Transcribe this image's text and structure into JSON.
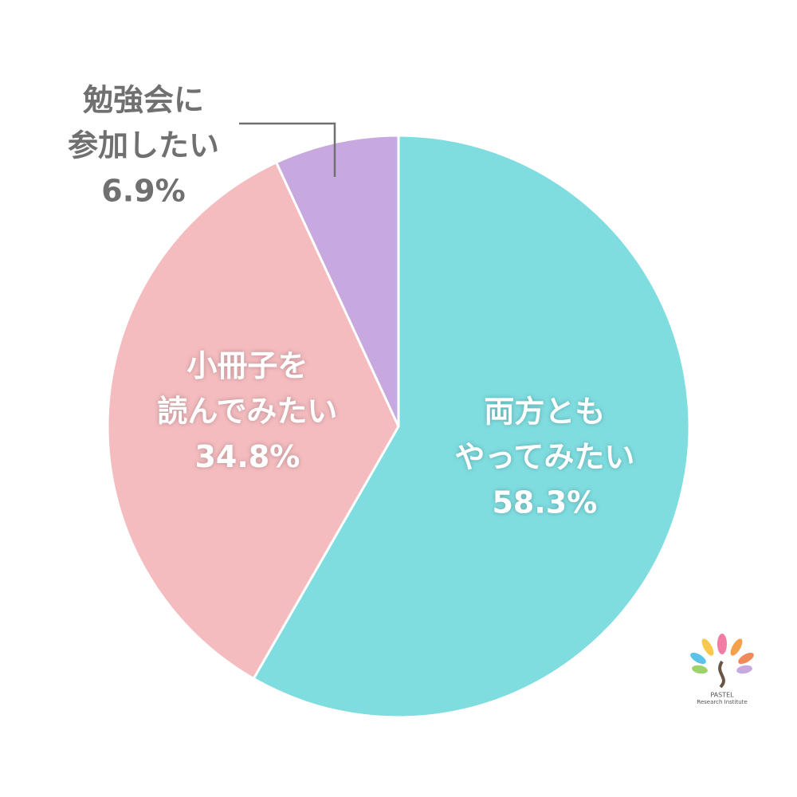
{
  "chart_data": {
    "type": "pie",
    "categories": [
      [
        "両方とも",
        "やってみたい"
      ],
      [
        "小冊子を",
        "読んでみたい"
      ],
      [
        "勉強会に",
        "参加したい"
      ]
    ],
    "values": [
      58.3,
      34.8,
      6.9
    ],
    "value_labels": [
      "58.3%",
      "34.8%",
      "6.9%"
    ],
    "colors": [
      "#7fdde0",
      "#f4bcbf",
      "#c7a8df"
    ]
  },
  "logo": {
    "name": "PASTEL",
    "subtitle": "Research Institute"
  }
}
